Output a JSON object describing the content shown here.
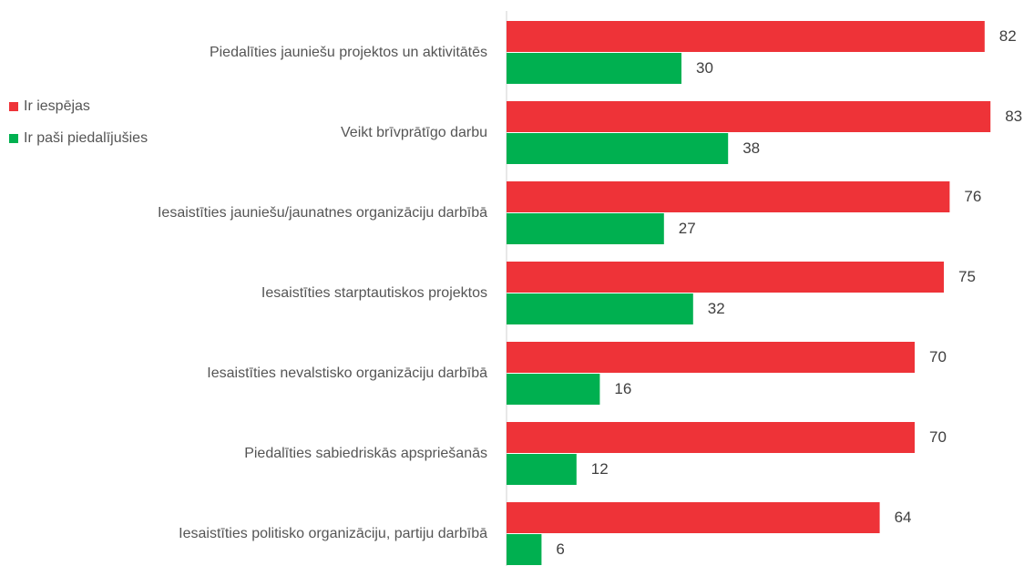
{
  "chart_data": {
    "type": "bar",
    "orientation": "horizontal",
    "categories": [
      "Piedalīties jauniešu projektos un aktivitātēs",
      "Veikt brīvprātīgo darbu",
      "Iesaistīties jauniešu/jaunatnes organizāciju darbībā",
      "Iesaistīties starptautiskos projektos",
      "Iesaistīties nevalstisko organizāciju darbībā",
      "Piedalīties sabiedriskās apspriešanās",
      "Iesaistīties politisko organizāciju, partiju darbībā"
    ],
    "series": [
      {
        "name": "Ir iespējas",
        "color": "#ee3338",
        "values": [
          82,
          83,
          76,
          75,
          70,
          70,
          64
        ]
      },
      {
        "name": "Ir paši piedalījušies",
        "color": "#00b050",
        "values": [
          30,
          38,
          27,
          32,
          16,
          12,
          6
        ]
      }
    ],
    "legend": "left"
  }
}
